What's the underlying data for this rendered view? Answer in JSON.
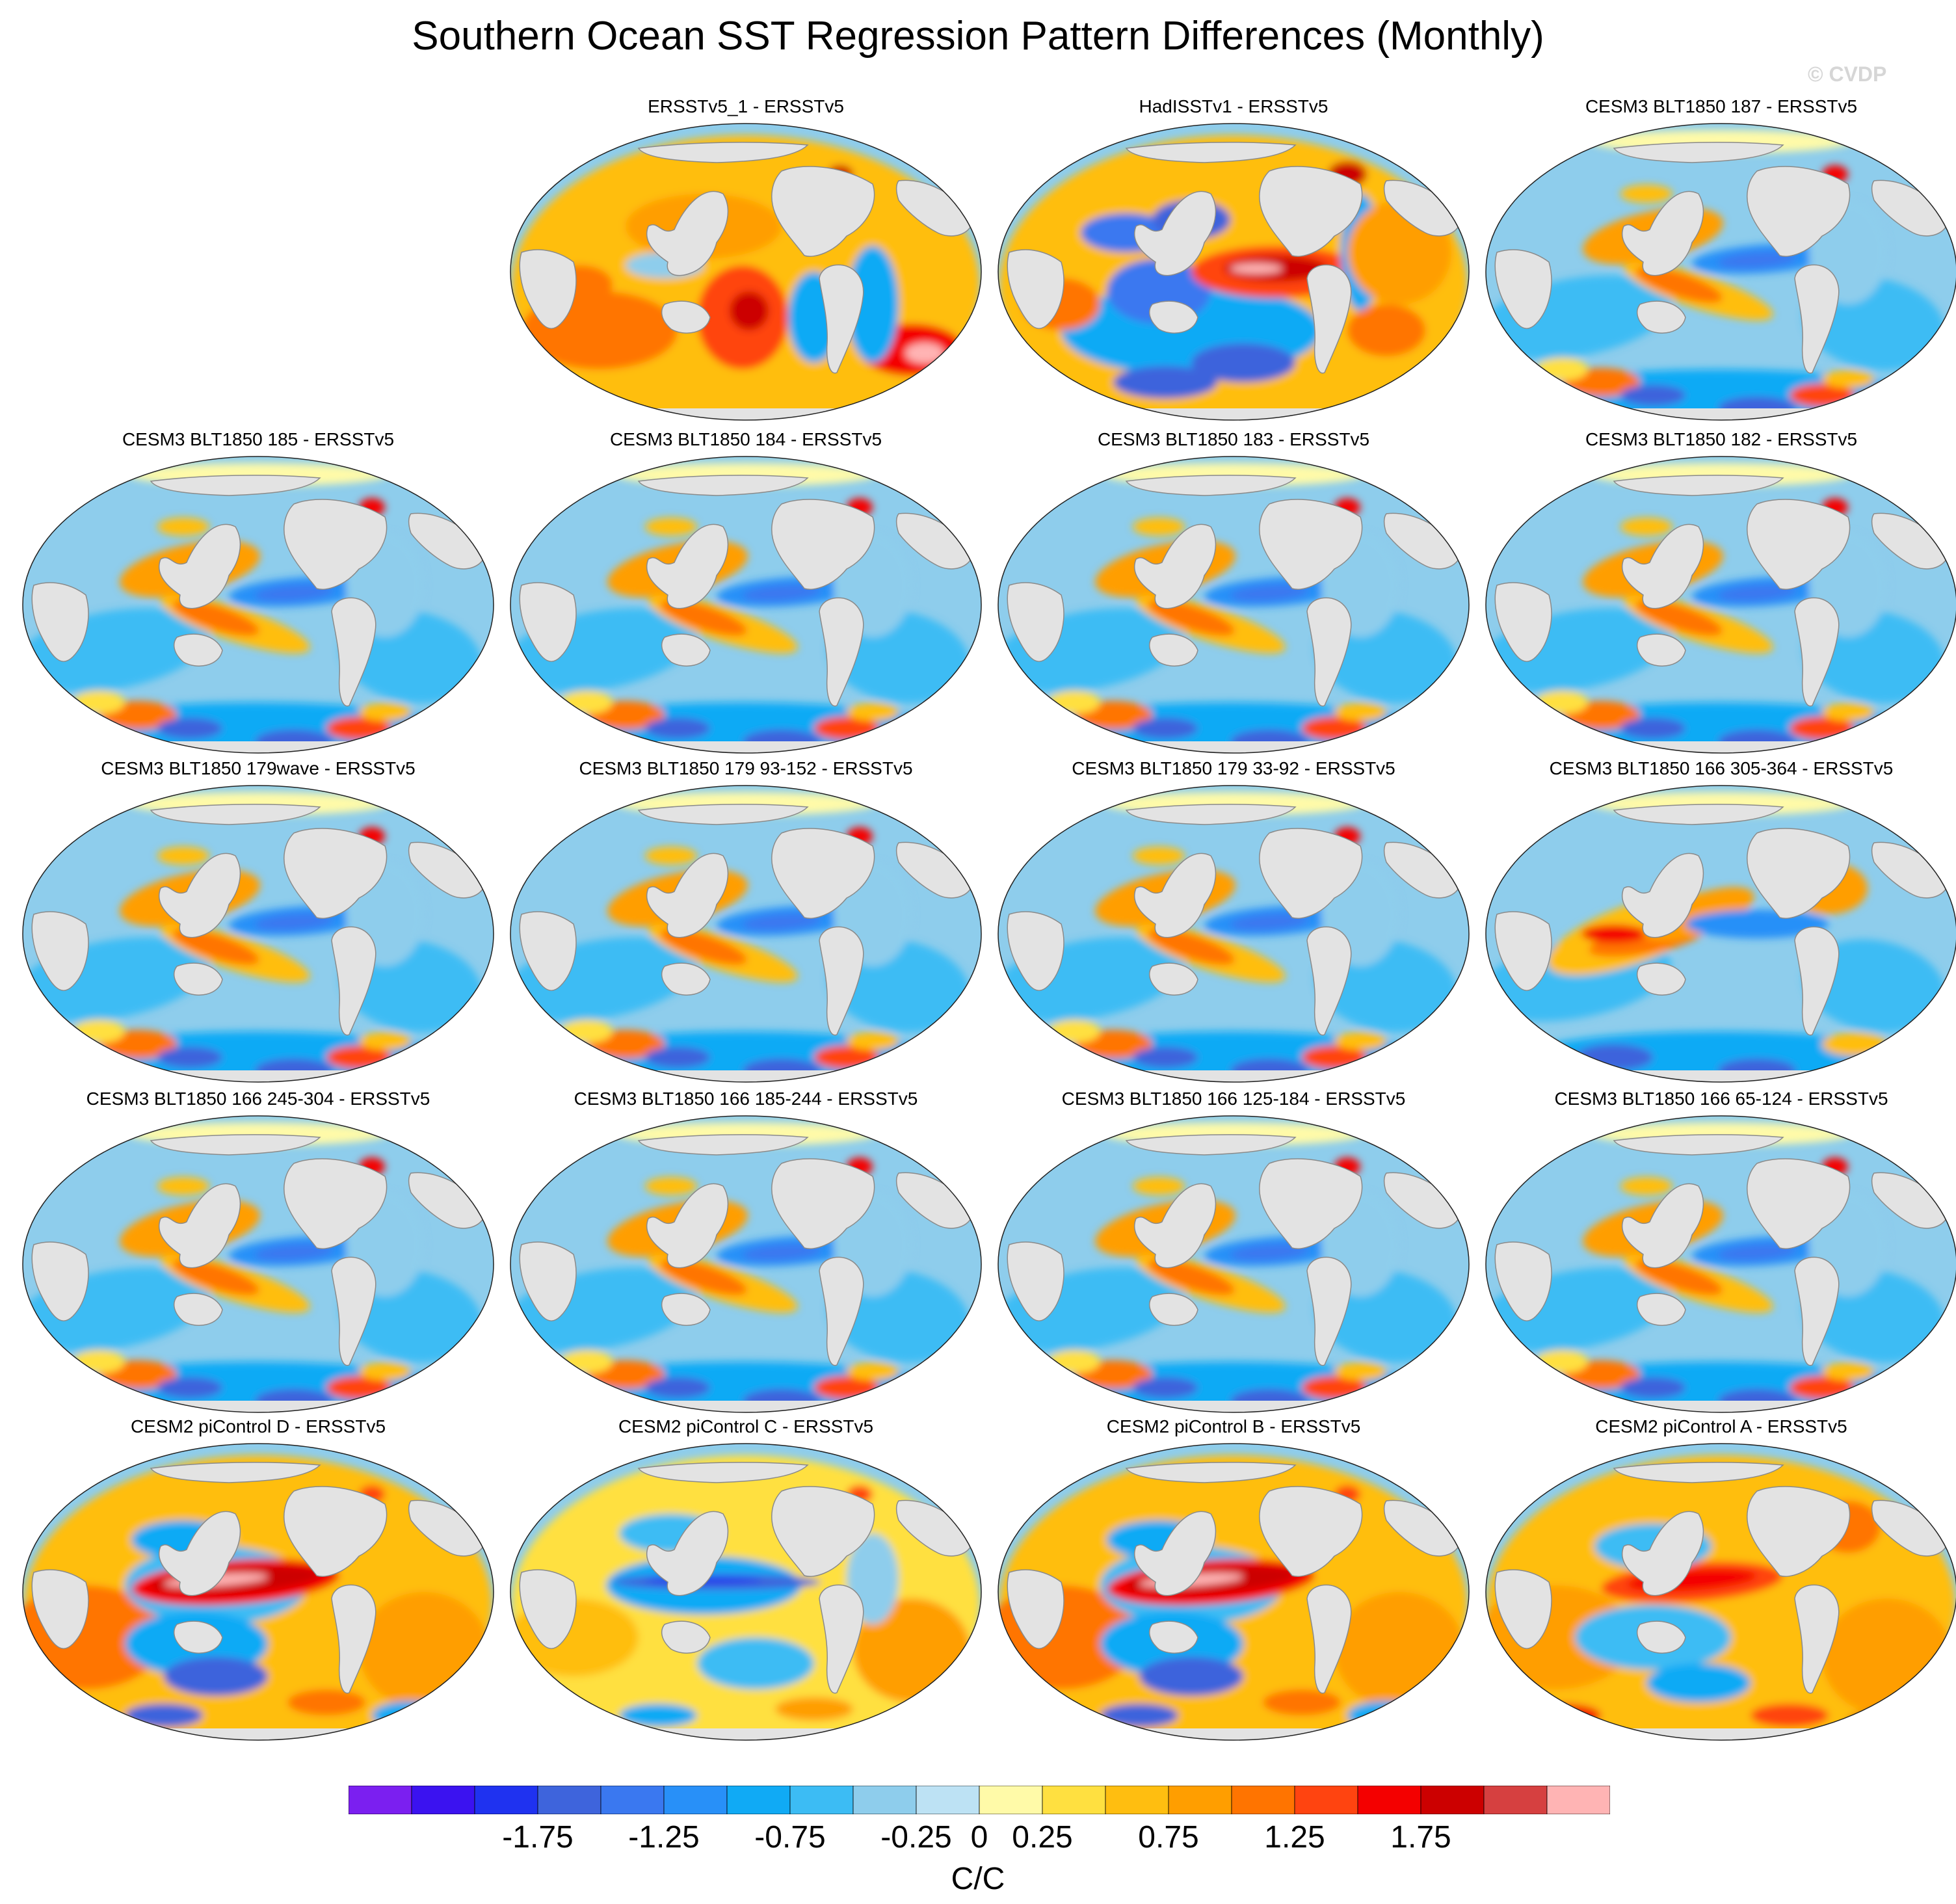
{
  "title": "Southern Ocean SST Regression Pattern Differences (Monthly)",
  "watermark": "© CVDP",
  "panels": [
    {
      "label": "ERSSTv5_1 - ERSSTv5",
      "pattern": "obs_a"
    },
    {
      "label": "HadISSTv1 - ERSSTv5",
      "pattern": "obs_b"
    },
    {
      "label": "CESM3 BLT1850 187 - ERSSTv5",
      "pattern": "model_cold"
    },
    {
      "label": "CESM3 BLT1850 185 - ERSSTv5",
      "pattern": "model_cold"
    },
    {
      "label": "CESM3 BLT1850 184 - ERSSTv5",
      "pattern": "model_cold"
    },
    {
      "label": "CESM3 BLT1850 183 - ERSSTv5",
      "pattern": "model_cold"
    },
    {
      "label": "CESM3 BLT1850 182 - ERSSTv5",
      "pattern": "model_cold"
    },
    {
      "label": "CESM3 BLT1850 179wave - ERSSTv5",
      "pattern": "model_cold"
    },
    {
      "label": "CESM3 BLT1850 179 93-152 - ERSSTv5",
      "pattern": "model_cold"
    },
    {
      "label": "CESM3 BLT1850 179 33-92 - ERSSTv5",
      "pattern": "model_cold"
    },
    {
      "label": "CESM3 BLT1850 166 305-364 - ERSSTv5",
      "pattern": "model_warmwest"
    },
    {
      "label": "CESM3 BLT1850 166 245-304 - ERSSTv5",
      "pattern": "model_cold"
    },
    {
      "label": "CESM3 BLT1850 166 185-244 - ERSSTv5",
      "pattern": "model_cold"
    },
    {
      "label": "CESM3 BLT1850 166 125-184 - ERSSTv5",
      "pattern": "model_cold"
    },
    {
      "label": "CESM3 BLT1850 166 65-124 - ERSSTv5",
      "pattern": "model_cold"
    },
    {
      "label": "CESM2 piControl D - ERSSTv5",
      "pattern": "cesm2_strong"
    },
    {
      "label": "CESM2 piControl C - ERSSTv5",
      "pattern": "cesm2_cold"
    },
    {
      "label": "CESM2 piControl B - ERSSTv5",
      "pattern": "cesm2_strong"
    },
    {
      "label": "CESM2 piControl A - ERSSTv5",
      "pattern": "cesm2_mod"
    }
  ],
  "colorbar": {
    "colors": [
      "#7b1ff0",
      "#3b12f0",
      "#1f32f0",
      "#3e64dc",
      "#3a78f0",
      "#2890f8",
      "#10aaf5",
      "#3cbcf4",
      "#8ecdec",
      "#bde2f4",
      "#fffaa8",
      "#ffe040",
      "#ffbe10",
      "#ff9e00",
      "#ff7400",
      "#ff4410",
      "#f40000",
      "#cc0000",
      "#d64040",
      "#ffb4b4"
    ],
    "tick_labels": [
      "-1.75",
      "-1.25",
      "-0.75",
      "-0.25",
      "0",
      "0.25",
      "0.75",
      "1.25",
      "1.75"
    ],
    "units": "C/C"
  }
}
